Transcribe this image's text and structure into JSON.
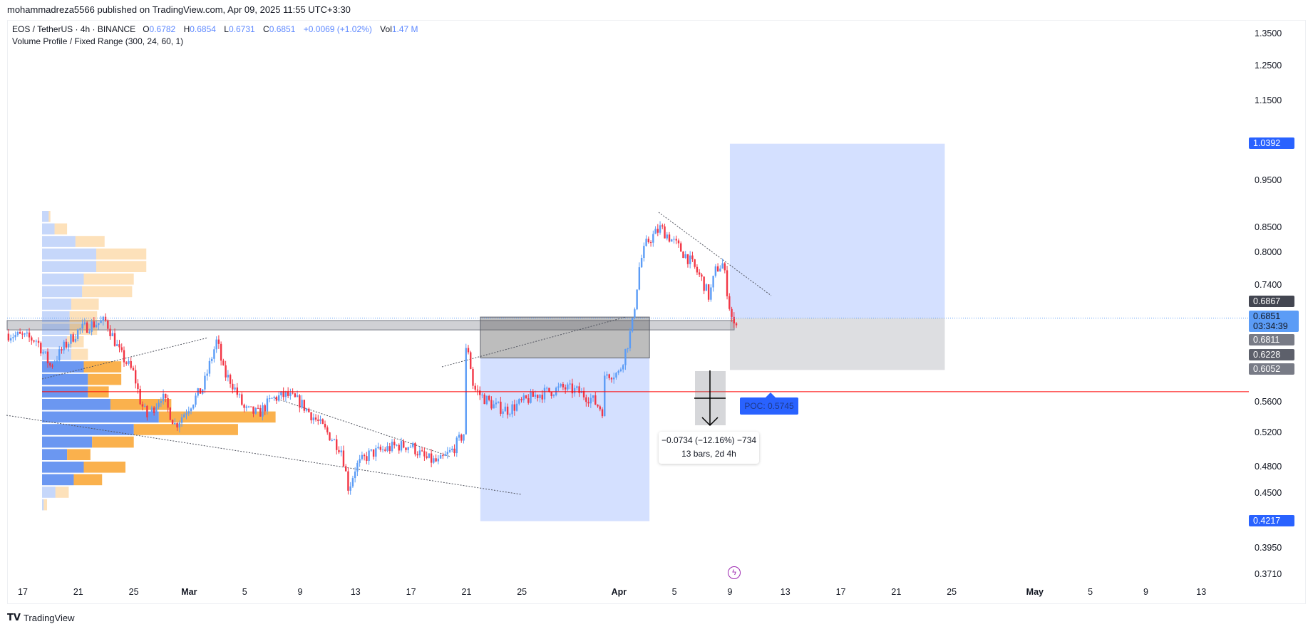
{
  "header": {
    "published": "mohammadreza5566 published on TradingView.com, Apr 09, 2025 11:55 UTC+3:30"
  },
  "legend": {
    "symbol": "EOS / TetherUS · 4h · BINANCE",
    "o_label": "O",
    "o": "0.6782",
    "h_label": "H",
    "h": "0.6854",
    "l_label": "L",
    "l": "0.6731",
    "c_label": "C",
    "c": "0.6851",
    "change": "+0.0069 (+1.02%)",
    "vol_label": "Vol",
    "vol": "1.47 M",
    "indicator": "Volume Profile / Fixed Range (300, 24, 60, 1)"
  },
  "measure": {
    "line1": "−0.0734 (−12.16%) −734",
    "line2": "13 bars, 2d 4h"
  },
  "poc": {
    "label": "POC: 0.5745",
    "price": 0.5745
  },
  "price_tags": [
    {
      "text": "1.0392",
      "price": 1.0392,
      "color": "#2962ff"
    },
    {
      "text": "0.6867",
      "price": 0.6867,
      "color": "#434651"
    },
    {
      "text": "0.6811",
      "price": 0.6811,
      "color": "#787b86"
    },
    {
      "text": "0.6228",
      "price": 0.6228,
      "color": "#5d606b"
    },
    {
      "text": "0.6052",
      "price": 0.6052,
      "color": "#787b86"
    },
    {
      "text": "0.4217",
      "price": 0.4217,
      "color": "#2962ff"
    }
  ],
  "last_price": {
    "text": "0.6851",
    "countdown": "03:34:39",
    "price": 0.6851,
    "color": "#5b9cf6"
  },
  "brand": {
    "name": "TradingView"
  },
  "colors": {
    "up": "#5b9cf6",
    "down": "#f23645",
    "profile_up": "#5b8cf0",
    "profile_down": "#f9a83a"
  },
  "chart_data": {
    "type": "candlestick",
    "title": "EOS / TetherUS · 4h · BINANCE",
    "y_scale": "log",
    "ylim": [
      0.371,
      1.35
    ],
    "y_ticks": [
      "1.3500",
      "1.2500",
      "1.1500",
      "0.9500",
      "0.8500",
      "0.8000",
      "0.7400",
      "0.5600",
      "0.5200",
      "0.4800",
      "0.4500",
      "0.3950",
      "0.3710"
    ],
    "x_ticks": [
      {
        "label": "17",
        "day": 0
      },
      {
        "label": "21",
        "day": 4
      },
      {
        "label": "25",
        "day": 8
      },
      {
        "label": "Mar",
        "day": 12,
        "bold": true
      },
      {
        "label": "5",
        "day": 16
      },
      {
        "label": "9",
        "day": 20
      },
      {
        "label": "13",
        "day": 24
      },
      {
        "label": "17",
        "day": 28
      },
      {
        "label": "21",
        "day": 32
      },
      {
        "label": "25",
        "day": 36
      },
      {
        "label": "Apr",
        "day": 43,
        "bold": true
      },
      {
        "label": "5",
        "day": 47
      },
      {
        "label": "9",
        "day": 51
      },
      {
        "label": "13",
        "day": 55
      },
      {
        "label": "17",
        "day": 59
      },
      {
        "label": "21",
        "day": 63
      },
      {
        "label": "25",
        "day": 67
      },
      {
        "label": "May",
        "day": 73,
        "bold": true
      },
      {
        "label": "5",
        "day": 77
      },
      {
        "label": "9",
        "day": 81
      },
      {
        "label": "13",
        "day": 85
      }
    ],
    "price_path_day_close": [
      [
        -1.2,
        0.66
      ],
      [
        0,
        0.655
      ],
      [
        1,
        0.65
      ],
      [
        2,
        0.61
      ],
      [
        3,
        0.64
      ],
      [
        4,
        0.665
      ],
      [
        5,
        0.675
      ],
      [
        6,
        0.68
      ],
      [
        7,
        0.63
      ],
      [
        8,
        0.6
      ],
      [
        8.5,
        0.56
      ],
      [
        9,
        0.54
      ],
      [
        10,
        0.57
      ],
      [
        11,
        0.53
      ],
      [
        12,
        0.555
      ],
      [
        13,
        0.58
      ],
      [
        14,
        0.65
      ],
      [
        14.5,
        0.6
      ],
      [
        15,
        0.59
      ],
      [
        16,
        0.55
      ],
      [
        17,
        0.545
      ],
      [
        18,
        0.565
      ],
      [
        19,
        0.57
      ],
      [
        20,
        0.56
      ],
      [
        21,
        0.54
      ],
      [
        22,
        0.52
      ],
      [
        23,
        0.5
      ],
      [
        23.5,
        0.455
      ],
      [
        24,
        0.48
      ],
      [
        25,
        0.495
      ],
      [
        26,
        0.5
      ],
      [
        27,
        0.505
      ],
      [
        28,
        0.505
      ],
      [
        29,
        0.49
      ],
      [
        30,
        0.485
      ],
      [
        31,
        0.5
      ],
      [
        31.8,
        0.52
      ],
      [
        32,
        0.655
      ],
      [
        32.5,
        0.58
      ],
      [
        33,
        0.57
      ],
      [
        34,
        0.555
      ],
      [
        35,
        0.55
      ],
      [
        36,
        0.56
      ],
      [
        37,
        0.57
      ],
      [
        38,
        0.575
      ],
      [
        39,
        0.58
      ],
      [
        40,
        0.575
      ],
      [
        41,
        0.565
      ],
      [
        41.8,
        0.55
      ],
      [
        42,
        0.6
      ],
      [
        43,
        0.6
      ],
      [
        43.7,
        0.65
      ],
      [
        44,
        0.68
      ],
      [
        44.5,
        0.78
      ],
      [
        45,
        0.82
      ],
      [
        46,
        0.85
      ],
      [
        47,
        0.82
      ],
      [
        48,
        0.79
      ],
      [
        49,
        0.75
      ],
      [
        49.5,
        0.72
      ],
      [
        50,
        0.77
      ],
      [
        50.5,
        0.78
      ],
      [
        51,
        0.7
      ],
      [
        51.3,
        0.67
      ],
      [
        51.5,
        0.6851
      ]
    ],
    "volume_profile_rows": [
      [
        8,
        2
      ],
      [
        15,
        15
      ],
      [
        40,
        35
      ],
      [
        65,
        60
      ],
      [
        65,
        60
      ],
      [
        50,
        60
      ],
      [
        48,
        60
      ],
      [
        35,
        33
      ],
      [
        33,
        33
      ],
      [
        33,
        33
      ],
      [
        30,
        20
      ],
      [
        35,
        20
      ],
      [
        50,
        45
      ],
      [
        55,
        40
      ],
      [
        55,
        25
      ],
      [
        82,
        73
      ],
      [
        140,
        140
      ],
      [
        110,
        125
      ],
      [
        60,
        50
      ],
      [
        30,
        28
      ],
      [
        50,
        50
      ],
      [
        38,
        34
      ],
      [
        16,
        16
      ],
      [
        2,
        4
      ]
    ],
    "zones": [
      {
        "name": "support-zone",
        "top": 0.6811,
        "bottom": 0.666
      },
      {
        "name": "long-entry-zone",
        "top": 0.6867,
        "bottom": 0.6228,
        "start_day": 33,
        "end_day": 45.2
      },
      {
        "name": "long-target-zone",
        "top": 0.6228,
        "bottom": 0.4217,
        "start_day": 33,
        "end_day": 45.2
      },
      {
        "name": "position-target",
        "top": 1.0392,
        "bottom": 0.6851,
        "start_day": 51,
        "end_day": 66.5
      },
      {
        "name": "position-stop",
        "top": 0.6851,
        "bottom": 0.6052,
        "start_day": 51,
        "end_day": 66.5
      }
    ]
  }
}
